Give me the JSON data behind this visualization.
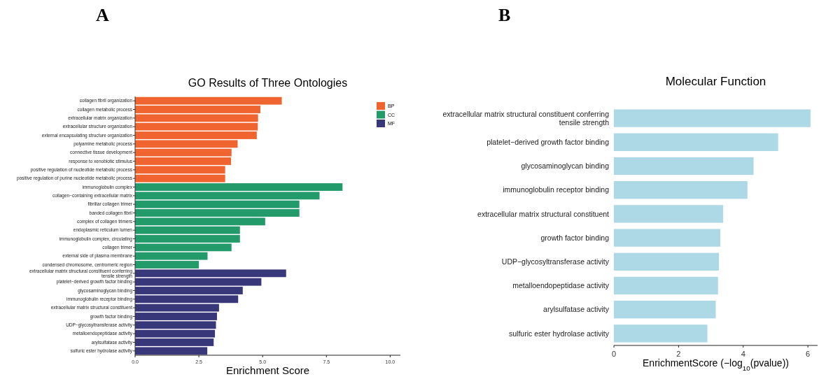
{
  "chart_data": [
    {
      "type": "bar",
      "orientation": "horizontal",
      "title": "GO Results of Three Ontologies",
      "xlabel": "Enrichment Score",
      "categories": [
        "collagen fibril organization",
        "collagen metabolic process",
        "extracellular matrix organization",
        "extracellular structure organization",
        "external encapsulating structure organization",
        "polyamine metabolic process",
        "connective tissue development",
        "response to xenobiotic stimulus",
        "positive regulation of nucleotide metabolic process",
        "positive regulation of purine nucleotide metabolic process",
        "immunoglobulin complex",
        "collagen−containing extracellular matrix",
        "fibrillar collagen trimer",
        "banded collagen fibril",
        "complex of collagen trimers",
        "endoplasmic reticulum lumen",
        "immunoglobulin complex, circulating",
        "collagen trimer",
        "external side of plasma membrane",
        "condensed chromosome, centromeric region",
        "extracellular matrix structural constituent conferring tensile strength",
        "platelet−derived growth factor binding",
        "glycosaminoglycan binding",
        "immunoglobulin receptor binding",
        "extracellular matrix structural constituent",
        "growth factor binding",
        "UDP−glycosyltransferase activity",
        "metalloendopeptidase activity",
        "arylsulfatase activity",
        "sulfuric ester hydrolase activity"
      ],
      "series": [
        {
          "name": "BP",
          "color": "#f06430",
          "values": [
            5.75,
            4.91,
            4.82,
            4.81,
            4.77,
            4.02,
            3.78,
            3.76,
            3.53,
            3.53,
            null,
            null,
            null,
            null,
            null,
            null,
            null,
            null,
            null,
            null,
            null,
            null,
            null,
            null,
            null,
            null,
            null,
            null,
            null,
            null
          ]
        },
        {
          "name": "CC",
          "color": "#229a6a",
          "values": [
            null,
            null,
            null,
            null,
            null,
            null,
            null,
            null,
            null,
            null,
            8.13,
            7.23,
            6.44,
            6.44,
            5.1,
            4.11,
            4.11,
            3.78,
            2.84,
            2.5,
            null,
            null,
            null,
            null,
            null,
            null,
            null,
            null,
            null,
            null
          ]
        },
        {
          "name": "MF",
          "color": "#37377a",
          "values": [
            null,
            null,
            null,
            null,
            null,
            null,
            null,
            null,
            null,
            null,
            null,
            null,
            null,
            null,
            null,
            null,
            null,
            null,
            null,
            null,
            5.92,
            4.95,
            4.22,
            4.04,
            3.29,
            3.21,
            3.17,
            3.13,
            3.08,
            2.83
          ]
        }
      ],
      "xlim": [
        0,
        10.4
      ],
      "xticks": [
        {
          "value": 0,
          "label": "0.0"
        },
        {
          "value": 2.5,
          "label": "2.5"
        },
        {
          "value": 5,
          "label": "5.0"
        },
        {
          "value": 7.5,
          "label": "7.5"
        },
        {
          "value": 10,
          "label": "10.0"
        }
      ],
      "legend": "top right",
      "annotations": [
        "A"
      ]
    },
    {
      "type": "bar",
      "orientation": "horizontal",
      "title": "Molecular Function",
      "xlabel": "EnrichmentScore (−log$_{10}$(pvalue))",
      "categories": [
        "extracellular matrix structural constituent conferring tensile strength",
        "platelet−derived growth factor binding",
        "glycosaminoglycan binding",
        "immunoglobulin receptor binding",
        "extracellular matrix structural constituent",
        "growth factor binding",
        "UDP−glycosyltransferase activity",
        "metalloendopeptidase activity",
        "arylsulfatase activity",
        "sulfuric ester hydrolase activity"
      ],
      "values": [
        6.08,
        5.08,
        4.32,
        4.13,
        3.38,
        3.29,
        3.25,
        3.22,
        3.15,
        2.89
      ],
      "color": "#add8e6",
      "xlim": [
        0,
        6.3
      ],
      "xticks": [
        0,
        2,
        4,
        6
      ],
      "annotations": [
        "B"
      ]
    }
  ]
}
